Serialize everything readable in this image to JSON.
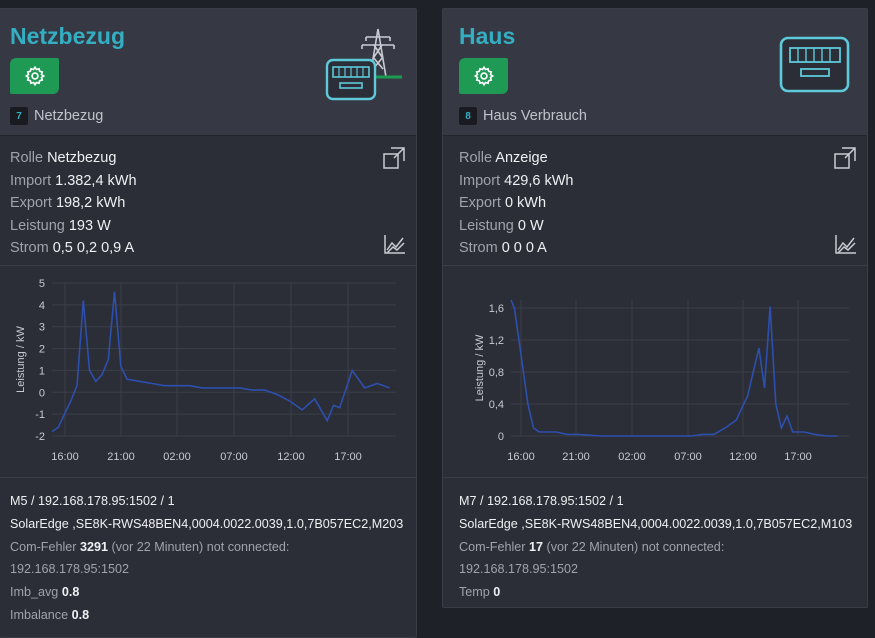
{
  "cards": [
    {
      "title": "Netzbezug",
      "id_badge": "7",
      "id_label": "Netzbezug",
      "header_icon": "power-meter-grid-icon",
      "rows": [
        {
          "label": "Rolle",
          "value": "Netzbezug"
        },
        {
          "label": "Import",
          "value": "1.382,4 kWh"
        },
        {
          "label": "Export",
          "value": "198,2 kWh"
        },
        {
          "label": "Leistung",
          "value": "193 W"
        },
        {
          "label": "Strom",
          "value": "0,5 0,2 0,9 A"
        }
      ],
      "chart_data": {
        "type": "line",
        "ylabel": "Leistung / kW",
        "ylim": [
          -2,
          5
        ],
        "yticks": [
          "5",
          "4",
          "3",
          "2",
          "1",
          "0",
          "-1",
          "-2"
        ],
        "xticks": [
          "16:00",
          "21:00",
          "02:00",
          "07:00",
          "12:00",
          "17:00"
        ],
        "x_hours": [
          0.0,
          0.5,
          1.0,
          1.5,
          2.0,
          2.5,
          3.0,
          3.5,
          4.0,
          4.5,
          5.0,
          5.5,
          6.0,
          7.0,
          8.0,
          9.0,
          10.0,
          11.0,
          12.0,
          13.0,
          14.0,
          15.0,
          16.0,
          17.0,
          18.0,
          19.0,
          20.0,
          21.0,
          22.0,
          22.5,
          23.0,
          24.0,
          25.0,
          26.0,
          27.0
        ],
        "values": [
          -1.8,
          -1.6,
          -1.0,
          -0.4,
          0.3,
          4.2,
          1.0,
          0.5,
          0.8,
          1.5,
          4.6,
          1.2,
          0.6,
          0.5,
          0.4,
          0.3,
          0.3,
          0.3,
          0.2,
          0.2,
          0.2,
          0.2,
          0.1,
          0.1,
          -0.1,
          -0.4,
          -0.8,
          -0.3,
          -1.3,
          -0.6,
          -0.7,
          1.0,
          0.2,
          0.4,
          0.2
        ],
        "series_color": "#2d4fae",
        "grid": true
      },
      "details": {
        "addr_module": "M5",
        "addr_host": "192.168.178.95:1502",
        "addr_unit": "1",
        "device": "SolarEdge ,SE8K-RWS48BEN4,0004.0022.0039,1.0,7B057EC2,M203",
        "com_label": "Com-Fehler",
        "com_count": "3291",
        "com_info": "(vor 22 Minuten) not connected:",
        "com_host": "192.168.178.95:1502",
        "extras": [
          {
            "label": "Imb_avg",
            "value": "0.8"
          },
          {
            "label": "Imbalance",
            "value": "0.8"
          }
        ]
      }
    },
    {
      "title": "Haus",
      "id_badge": "8",
      "id_label": "Haus Verbrauch",
      "header_icon": "power-meter-icon",
      "rows": [
        {
          "label": "Rolle",
          "value": "Anzeige"
        },
        {
          "label": "Import",
          "value": "429,6 kWh"
        },
        {
          "label": "Export",
          "value": "0 kWh"
        },
        {
          "label": "Leistung",
          "value": "0 W"
        },
        {
          "label": "Strom",
          "value": "0 0 0 A"
        }
      ],
      "chart_data": {
        "type": "line",
        "ylabel": "Leistung / kW",
        "ylim": [
          0,
          1.7
        ],
        "yticks": [
          "1,6",
          "1,2",
          "0,8",
          "0,4",
          "0"
        ],
        "ytick_values": [
          1.6,
          1.2,
          0.8,
          0.4,
          0
        ],
        "xticks": [
          "16:00",
          "21:00",
          "02:00",
          "07:00",
          "12:00",
          "17:00"
        ],
        "x_hours": [
          0.0,
          0.3,
          0.6,
          1.0,
          1.5,
          2.0,
          2.5,
          3.0,
          4.0,
          5.0,
          6.0,
          8.0,
          10.0,
          12.0,
          14.0,
          16.0,
          17.0,
          18.0,
          19.0,
          20.0,
          21.0,
          22.0,
          22.5,
          23.0,
          23.5,
          24.0,
          24.5,
          25.0,
          25.5,
          26.0,
          27.0,
          28.0,
          29.0
        ],
        "values": [
          1.7,
          1.6,
          1.3,
          0.9,
          0.4,
          0.1,
          0.05,
          0.05,
          0.05,
          0.02,
          0.02,
          0.0,
          0.0,
          0.0,
          0.0,
          0.0,
          0.02,
          0.02,
          0.1,
          0.2,
          0.5,
          1.1,
          0.6,
          1.62,
          0.4,
          0.1,
          0.25,
          0.05,
          0.05,
          0.05,
          0.02,
          0.0,
          0.0
        ],
        "series_color": "#2d4fae",
        "grid": true
      },
      "details": {
        "addr_module": "M7",
        "addr_host": "192.168.178.95:1502",
        "addr_unit": "1",
        "device": "SolarEdge ,SE8K-RWS48BEN4,0004.0022.0039,1.0,7B057EC2,M103",
        "com_label": "Com-Fehler",
        "com_count": "17",
        "com_info": "(vor 22 Minuten) not connected:",
        "com_host": "192.168.178.95:1502",
        "extras": [
          {
            "label": "Temp",
            "value": "0"
          }
        ]
      }
    }
  ]
}
